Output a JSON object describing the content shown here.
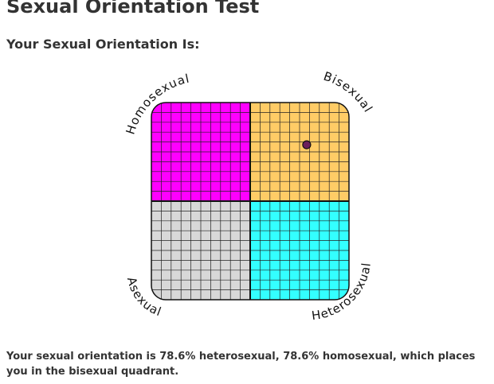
{
  "page": {
    "title": "Sexual Orientation Test",
    "subtitle": "Your Sexual Orientation Is:",
    "result": "Your sexual orientation is 78.6% heterosexual, 78.6% homosexual, which places you in the bisexual quadrant."
  },
  "chart_data": {
    "type": "scatter",
    "quadrants": [
      {
        "key": "homosexual",
        "label": "Homosexual",
        "color": "#ff00ff",
        "position": "top-left"
      },
      {
        "key": "bisexual",
        "label": "Bisexual",
        "color": "#ffcc66",
        "position": "top-right"
      },
      {
        "key": "asexual",
        "label": "Asexual",
        "color": "#d8d8d8",
        "position": "bottom-left"
      },
      {
        "key": "heterosexual",
        "label": "Heterosexual",
        "color": "#33ffff",
        "position": "bottom-right"
      }
    ],
    "grid_divisions_per_quadrant": 10,
    "point": {
      "heterosexual_percent": 78.6,
      "homosexual_percent": 78.6,
      "color": "#6b1f5c"
    }
  }
}
